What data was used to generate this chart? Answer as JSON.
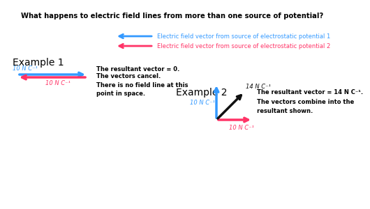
{
  "title": "What happens to electric field lines from more than one source of potential?",
  "arrow1_label": "Electric field vector from source of electrostatic potential 1",
  "arrow2_label": "Electric field vector from source of electrostatic potential 2",
  "example1_title": "Example 1",
  "example2_title": "Example 2",
  "ex1_label_top": "10 N C⁻¹",
  "ex1_label_bottom": "10 N C⁻¹",
  "ex1_text1": "The resultant vector = 0.",
  "ex1_text2": "The vectors cancel.\nThere is no field line at this\npoint in space.",
  "ex2_label_blue": "10 N C⁻¹",
  "ex2_label_pink": "10 N C⁻¹",
  "ex2_label_black": "14 N C⁻¹",
  "ex2_text1": "The resultant vector = 14 N C⁻¹.",
  "ex2_text2": "The vectors combine into the\nresultant shown.",
  "blue_color": "#3399ff",
  "pink_color": "#ff3366",
  "black_color": "#111111",
  "bg_color": "#ffffff"
}
